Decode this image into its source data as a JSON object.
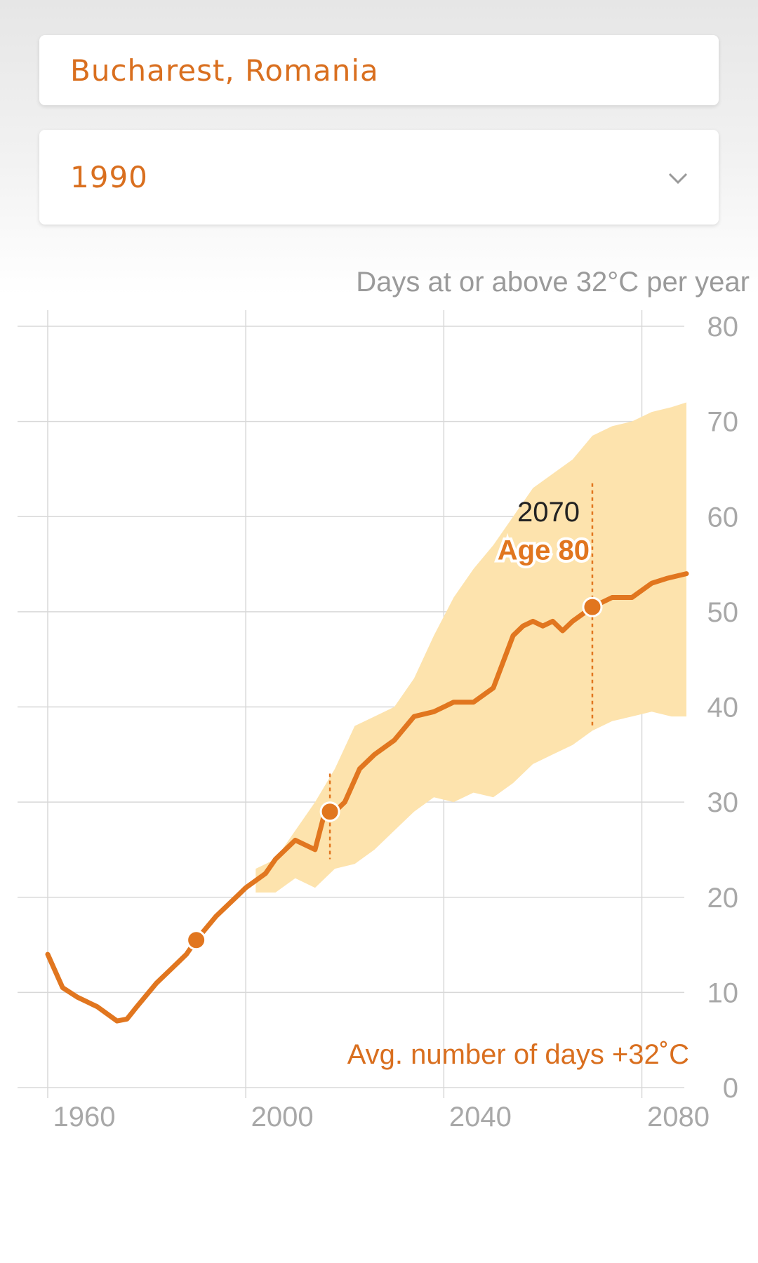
{
  "location": {
    "value": "Bucharest, Romania"
  },
  "birth_year": {
    "value": "1990",
    "icon": "chevron-down-icon"
  },
  "colors": {
    "accent": "#e1761f",
    "band": "#fde3ad",
    "grid": "#d8d8d8",
    "tick": "#a8a8a8"
  },
  "chart_data": {
    "type": "line",
    "title": "",
    "ylabel": "Days at or above 32°C per year",
    "xlabel": "",
    "xlim": [
      1960,
      2089
    ],
    "ylim": [
      0,
      80
    ],
    "x_ticks": [
      "1960",
      "2000",
      "2040",
      "2080"
    ],
    "y_ticks": [
      "0",
      "10",
      "20",
      "30",
      "40",
      "50",
      "60",
      "70",
      "80"
    ],
    "x_tick_values": [
      1960,
      2000,
      2040,
      2080
    ],
    "y_tick_values": [
      0,
      10,
      20,
      30,
      40,
      50,
      60,
      70,
      80
    ],
    "grid": true,
    "series": [
      {
        "name": "Avg. number of days +32˚C",
        "x": [
          1960,
          1963,
          1966,
          1970,
          1974,
          1976,
          1978,
          1982,
          1985,
          1988,
          1990,
          1994,
          1998,
          2000,
          2004,
          2006,
          2010,
          2014,
          2016,
          2018,
          2020,
          2023,
          2026,
          2030,
          2034,
          2038,
          2042,
          2046,
          2050,
          2054,
          2056,
          2058,
          2060,
          2062,
          2064,
          2066,
          2070,
          2074,
          2078,
          2082,
          2085,
          2089
        ],
        "y": [
          14,
          10.5,
          9.5,
          8.5,
          7,
          7.2,
          8.5,
          11,
          12.5,
          14,
          15.5,
          18,
          20,
          21,
          22.5,
          24,
          26,
          25,
          29,
          29,
          30,
          33.5,
          35,
          36.5,
          39,
          39.5,
          40.5,
          40.5,
          42,
          47.5,
          48.5,
          49,
          48.5,
          49,
          48,
          49,
          50.5,
          51.5,
          51.5,
          53,
          53.5,
          54
        ]
      }
    ],
    "band": {
      "x": [
        2002,
        2006,
        2010,
        2014,
        2018,
        2022,
        2026,
        2030,
        2034,
        2038,
        2042,
        2046,
        2050,
        2054,
        2058,
        2062,
        2066,
        2070,
        2074,
        2078,
        2082,
        2086,
        2089
      ],
      "low": [
        20.5,
        20.5,
        22,
        21,
        23,
        23.5,
        25,
        27,
        29,
        30.5,
        30,
        31,
        30.5,
        32,
        34,
        35,
        36,
        37.5,
        38.5,
        39,
        39.5,
        39,
        39
      ],
      "high": [
        23,
        24,
        27,
        30,
        33.5,
        38,
        39,
        40,
        43,
        47.5,
        51.5,
        54.5,
        57,
        60,
        63,
        64.5,
        66,
        68.5,
        69.5,
        70,
        71,
        71.5,
        72
      ]
    },
    "markers": [
      {
        "x": 1990,
        "y": 15.5
      },
      {
        "x": 2017,
        "y": 29
      },
      {
        "x": 2070,
        "y": 50.5
      }
    ],
    "annotation": {
      "x": 2070,
      "year": "2070",
      "label": "Age 80"
    },
    "legend_label": "Avg. number of days +32˚C"
  }
}
